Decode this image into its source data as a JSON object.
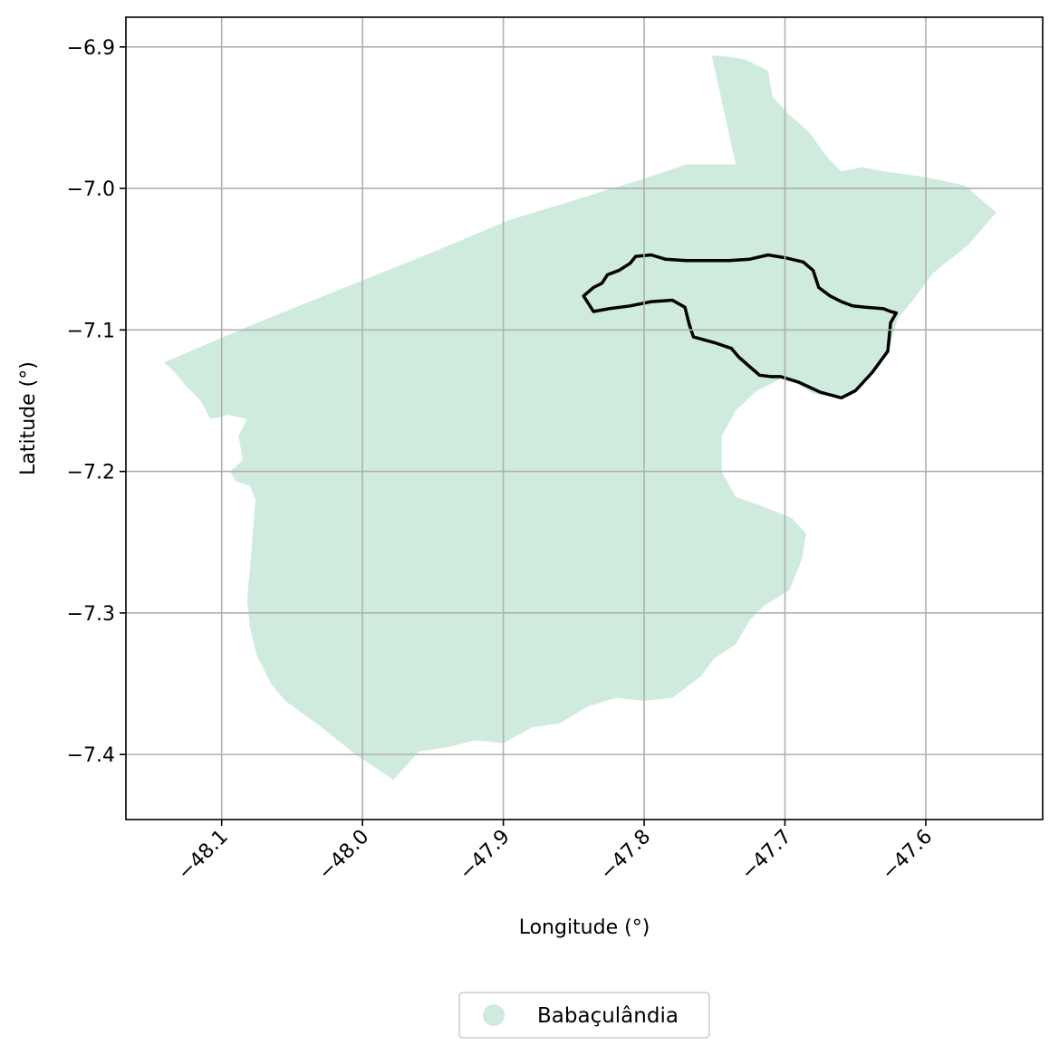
{
  "map": {
    "xlabel": "Longitude (°)",
    "ylabel": "Latitude (°)",
    "x_ticks": [
      {
        "value": -48.1,
        "label": "−48.1"
      },
      {
        "value": -48.0,
        "label": "−48.0"
      },
      {
        "value": -47.9,
        "label": "−47.9"
      },
      {
        "value": -47.8,
        "label": "−47.8"
      },
      {
        "value": -47.7,
        "label": "−47.7"
      },
      {
        "value": -47.6,
        "label": "−47.6"
      }
    ],
    "y_ticks": [
      {
        "value": -6.9,
        "label": "−6.9"
      },
      {
        "value": -7.0,
        "label": "−7.0"
      },
      {
        "value": -7.1,
        "label": "−7.1"
      },
      {
        "value": -7.2,
        "label": "−7.2"
      },
      {
        "value": -7.3,
        "label": "−7.3"
      },
      {
        "value": -7.4,
        "label": "−7.4"
      }
    ],
    "xlim": [
      -48.168,
      -47.517
    ],
    "ylim": [
      -7.446,
      -6.879
    ],
    "grid": true,
    "legend_position": "bottom-center",
    "legend": [
      {
        "label": "Babaçulândia",
        "color": "#cfebdd"
      }
    ],
    "colors": {
      "region_fill": "#cfebdd",
      "outline_stroke": "#000000",
      "grid": "#b0b0b0"
    },
    "region_polygon": [
      [
        -47.752,
        -6.906
      ],
      [
        -47.739,
        -6.907
      ],
      [
        -47.728,
        -6.909
      ],
      [
        -47.712,
        -6.917
      ],
      [
        -47.709,
        -6.935
      ],
      [
        -47.697,
        -6.948
      ],
      [
        -47.683,
        -6.96
      ],
      [
        -47.67,
        -6.978
      ],
      [
        -47.66,
        -6.988
      ],
      [
        -47.645,
        -6.985
      ],
      [
        -47.63,
        -6.988
      ],
      [
        -47.6,
        -6.992
      ],
      [
        -47.572,
        -6.998
      ],
      [
        -47.55,
        -7.017
      ],
      [
        -47.57,
        -7.04
      ],
      [
        -47.595,
        -7.06
      ],
      [
        -47.61,
        -7.08
      ],
      [
        -47.62,
        -7.092
      ],
      [
        -47.625,
        -7.11
      ],
      [
        -47.632,
        -7.122
      ],
      [
        -47.645,
        -7.14
      ],
      [
        -47.66,
        -7.148
      ],
      [
        -47.68,
        -7.145
      ],
      [
        -47.7,
        -7.133
      ],
      [
        -47.72,
        -7.143
      ],
      [
        -47.735,
        -7.157
      ],
      [
        -47.745,
        -7.175
      ],
      [
        -47.745,
        -7.2
      ],
      [
        -47.735,
        -7.218
      ],
      [
        -47.715,
        -7.225
      ],
      [
        -47.695,
        -7.233
      ],
      [
        -47.685,
        -7.244
      ],
      [
        -47.688,
        -7.262
      ],
      [
        -47.697,
        -7.284
      ],
      [
        -47.715,
        -7.295
      ],
      [
        -47.725,
        -7.305
      ],
      [
        -47.735,
        -7.322
      ],
      [
        -47.75,
        -7.332
      ],
      [
        -47.76,
        -7.345
      ],
      [
        -47.78,
        -7.36
      ],
      [
        -47.8,
        -7.362
      ],
      [
        -47.82,
        -7.36
      ],
      [
        -47.84,
        -7.366
      ],
      [
        -47.86,
        -7.378
      ],
      [
        -47.88,
        -7.381
      ],
      [
        -47.9,
        -7.392
      ],
      [
        -47.92,
        -7.39
      ],
      [
        -47.94,
        -7.395
      ],
      [
        -47.96,
        -7.398
      ],
      [
        -47.978,
        -7.418
      ],
      [
        -47.99,
        -7.41
      ],
      [
        -48.005,
        -7.4
      ],
      [
        -48.03,
        -7.38
      ],
      [
        -48.055,
        -7.362
      ],
      [
        -48.065,
        -7.35
      ],
      [
        -48.075,
        -7.33
      ],
      [
        -48.08,
        -7.31
      ],
      [
        -48.082,
        -7.29
      ],
      [
        -48.08,
        -7.27
      ],
      [
        -48.078,
        -7.245
      ],
      [
        -48.076,
        -7.22
      ],
      [
        -48.08,
        -7.21
      ],
      [
        -48.09,
        -7.207
      ],
      [
        -48.094,
        -7.2
      ],
      [
        -48.085,
        -7.192
      ],
      [
        -48.088,
        -7.175
      ],
      [
        -48.082,
        -7.163
      ],
      [
        -48.095,
        -7.16
      ],
      [
        -48.108,
        -7.163
      ],
      [
        -48.115,
        -7.15
      ],
      [
        -48.125,
        -7.14
      ],
      [
        -48.135,
        -7.128
      ],
      [
        -48.141,
        -7.123
      ],
      [
        -48.12,
        -7.114
      ],
      [
        -48.07,
        -7.093
      ],
      [
        -48.01,
        -7.069
      ],
      [
        -47.95,
        -7.045
      ],
      [
        -47.895,
        -7.022
      ],
      [
        -47.855,
        -7.01
      ],
      [
        -47.8,
        -6.993
      ],
      [
        -47.77,
        -6.983
      ],
      [
        -47.735,
        -6.983
      ],
      [
        -47.752,
        -6.906
      ]
    ],
    "outline_polygon": [
      [
        -47.843,
        -7.076
      ],
      [
        -47.836,
        -7.07
      ],
      [
        -47.83,
        -7.067
      ],
      [
        -47.826,
        -7.061
      ],
      [
        -47.818,
        -7.058
      ],
      [
        -47.81,
        -7.053
      ],
      [
        -47.806,
        -7.048
      ],
      [
        -47.795,
        -7.047
      ],
      [
        -47.785,
        -7.05
      ],
      [
        -47.77,
        -7.051
      ],
      [
        -47.755,
        -7.051
      ],
      [
        -47.74,
        -7.051
      ],
      [
        -47.725,
        -7.05
      ],
      [
        -47.712,
        -7.047
      ],
      [
        -47.7,
        -7.049
      ],
      [
        -47.687,
        -7.052
      ],
      [
        -47.68,
        -7.058
      ],
      [
        -47.676,
        -7.07
      ],
      [
        -47.668,
        -7.076
      ],
      [
        -47.66,
        -7.08
      ],
      [
        -47.652,
        -7.083
      ],
      [
        -47.643,
        -7.084
      ],
      [
        -47.63,
        -7.085
      ],
      [
        -47.625,
        -7.087
      ],
      [
        -47.621,
        -7.088
      ],
      [
        -47.625,
        -7.095
      ],
      [
        -47.627,
        -7.115
      ],
      [
        -47.638,
        -7.13
      ],
      [
        -47.65,
        -7.143
      ],
      [
        -47.66,
        -7.148
      ],
      [
        -47.675,
        -7.144
      ],
      [
        -47.69,
        -7.137
      ],
      [
        -47.703,
        -7.133
      ],
      [
        -47.71,
        -7.133
      ],
      [
        -47.718,
        -7.132
      ],
      [
        -47.725,
        -7.126
      ],
      [
        -47.733,
        -7.119
      ],
      [
        -47.738,
        -7.113
      ],
      [
        -47.75,
        -7.109
      ],
      [
        -47.765,
        -7.105
      ],
      [
        -47.768,
        -7.096
      ],
      [
        -47.771,
        -7.084
      ],
      [
        -47.78,
        -7.079
      ],
      [
        -47.795,
        -7.08
      ],
      [
        -47.81,
        -7.083
      ],
      [
        -47.825,
        -7.085
      ],
      [
        -47.836,
        -7.087
      ],
      [
        -47.843,
        -7.076
      ]
    ]
  }
}
